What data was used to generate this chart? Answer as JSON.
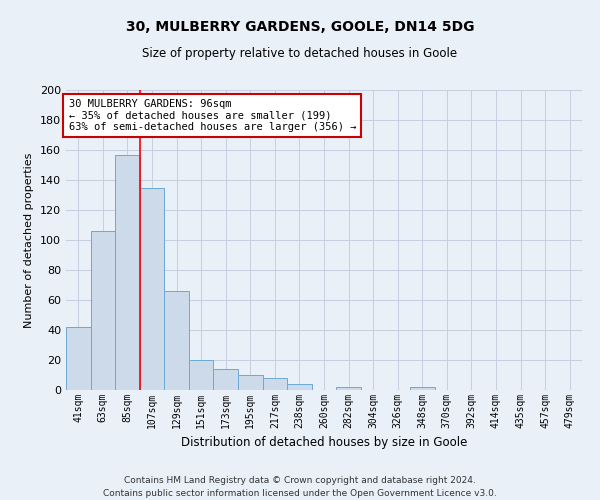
{
  "title1": "30, MULBERRY GARDENS, GOOLE, DN14 5DG",
  "title2": "Size of property relative to detached houses in Goole",
  "xlabel": "Distribution of detached houses by size in Goole",
  "ylabel": "Number of detached properties",
  "categories": [
    "41sqm",
    "63sqm",
    "85sqm",
    "107sqm",
    "129sqm",
    "151sqm",
    "173sqm",
    "195sqm",
    "217sqm",
    "238sqm",
    "260sqm",
    "282sqm",
    "304sqm",
    "326sqm",
    "348sqm",
    "370sqm",
    "392sqm",
    "414sqm",
    "435sqm",
    "457sqm",
    "479sqm"
  ],
  "values": [
    42,
    106,
    157,
    135,
    66,
    20,
    14,
    10,
    8,
    4,
    0,
    2,
    0,
    0,
    2,
    0,
    0,
    0,
    0,
    0,
    0
  ],
  "bar_color": "#ccdaea",
  "bar_edge_color": "#6aaad4",
  "grid_color": "#c5cfe0",
  "background_color": "#eaf0f8",
  "annotation_box_text": "30 MULBERRY GARDENS: 96sqm\n← 35% of detached houses are smaller (199)\n63% of semi-detached houses are larger (356) →",
  "annotation_box_color": "#ffffff",
  "annotation_box_edge_color": "#cc0000",
  "red_line_x": 2.5,
  "ylim": [
    0,
    200
  ],
  "yticks": [
    0,
    20,
    40,
    60,
    80,
    100,
    120,
    140,
    160,
    180,
    200
  ],
  "footer": "Contains HM Land Registry data © Crown copyright and database right 2024.\nContains public sector information licensed under the Open Government Licence v3.0."
}
